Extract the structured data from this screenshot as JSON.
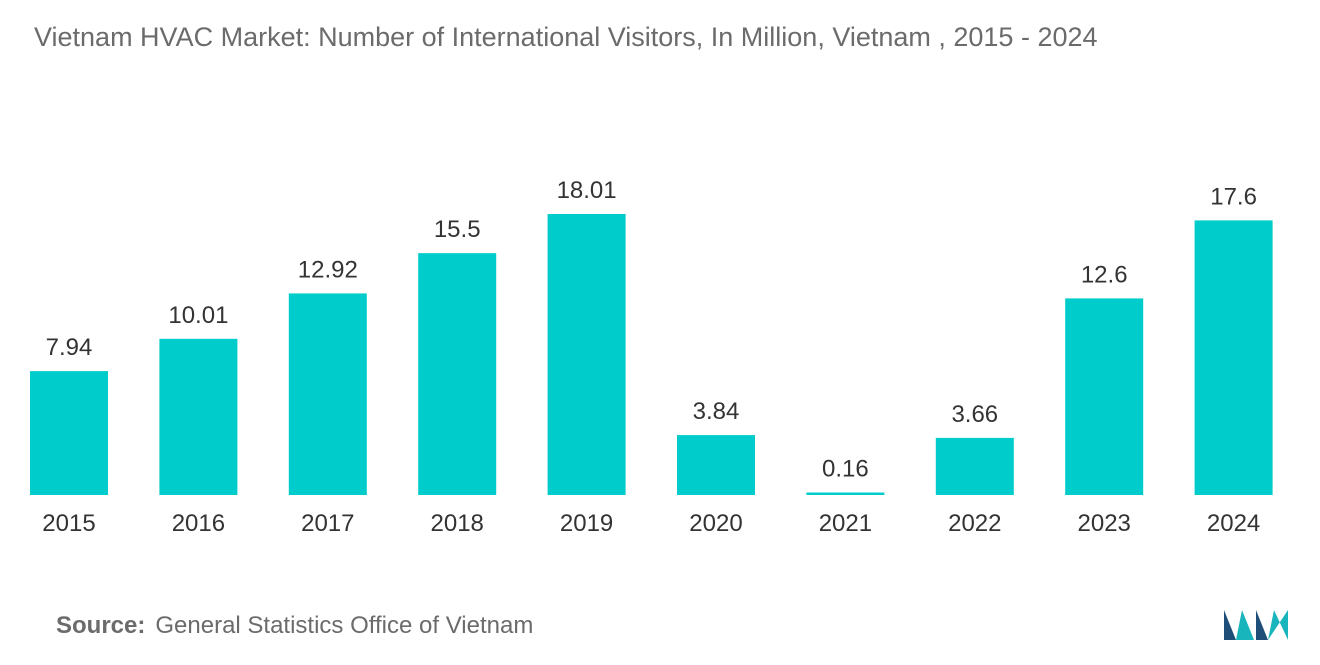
{
  "title": "Vietnam HVAC Market: Number of International Visitors, In Million, Vietnam , 2015 - 2024",
  "source": {
    "label": "Source:",
    "text": "General Statistics Office of Vietnam"
  },
  "colors": {
    "bar": "#00cccc",
    "logo_dark": "#1f4e79",
    "logo_teal": "#19b5bd"
  },
  "logo": {
    "icon": "mordor-intelligence-logo"
  },
  "chart_data": {
    "type": "bar",
    "title": "Vietnam HVAC Market: Number of International Visitors, In Million, Vietnam , 2015 - 2024",
    "categories": [
      "2015",
      "2016",
      "2017",
      "2018",
      "2019",
      "2020",
      "2021",
      "2022",
      "2023",
      "2024"
    ],
    "values": [
      7.94,
      10.01,
      12.92,
      15.5,
      18.01,
      3.84,
      0.16,
      3.66,
      12.6,
      17.6
    ],
    "data_labels": [
      "7.94",
      "10.01",
      "12.92",
      "15.5",
      "18.01",
      "3.84",
      "0.16",
      "3.66",
      "12.6",
      "17.6"
    ],
    "xlabel": "",
    "ylabel": "",
    "ylim": [
      0,
      18.01
    ],
    "grid": false,
    "legend": "none"
  }
}
